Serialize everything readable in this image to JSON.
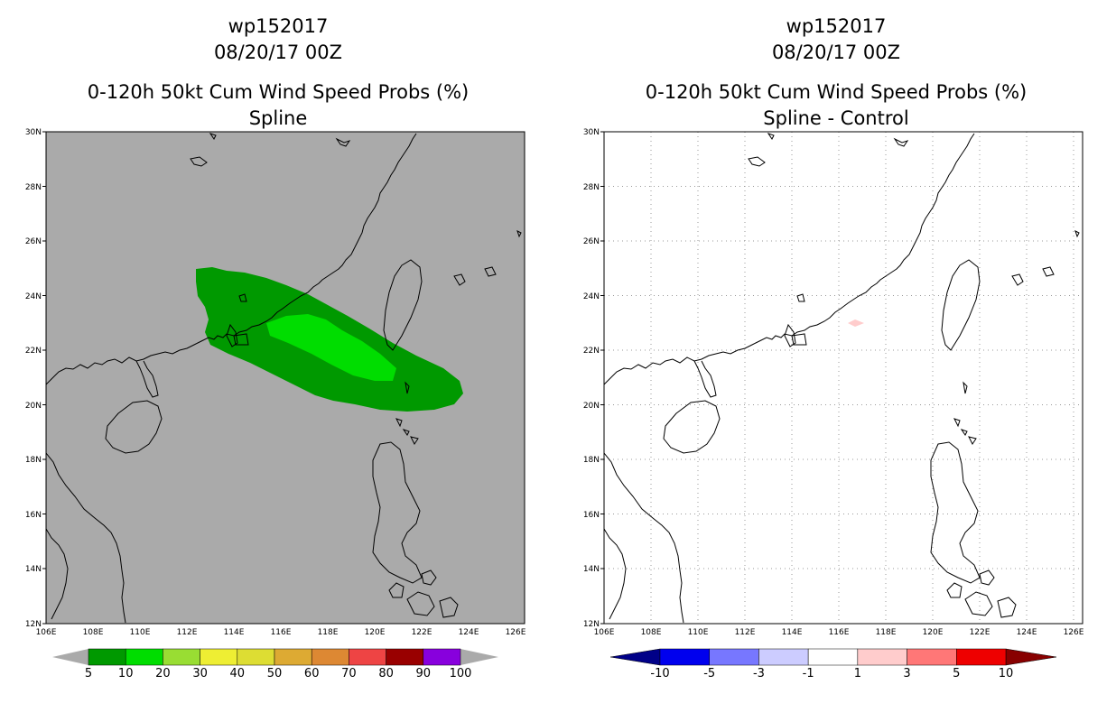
{
  "left_panel": {
    "title_line1": "wp152017",
    "title_line2": "08/20/17 00Z",
    "title_line3": "0-120h 50kt Cum Wind Speed Probs (%)",
    "title_line4": "Spline",
    "background_color": "#aaaaaa"
  },
  "right_panel": {
    "title_line1": "wp152017",
    "title_line2": "08/20/17 00Z",
    "title_line3": "0-120h 50kt Cum Wind Speed Probs (%)",
    "title_line4": "Spline - Control",
    "background_color": "#ffffff"
  },
  "axes": {
    "lat_labels": [
      "30N",
      "28N",
      "26N",
      "24N",
      "22N",
      "20N",
      "18N",
      "16N",
      "14N",
      "12N"
    ],
    "lon_labels": [
      "106E",
      "108E",
      "110E",
      "112E",
      "114E",
      "116E",
      "118E",
      "120E",
      "122E",
      "124E",
      "126E"
    ]
  },
  "left_colorbar": {
    "labels": [
      "5",
      "10",
      "20",
      "30",
      "40",
      "50",
      "60",
      "70",
      "80",
      "90",
      "100"
    ],
    "colors": [
      "#009900",
      "#00dd00",
      "#99dd33",
      "#eeee33",
      "#dddd33",
      "#ddaa33",
      "#dd8833",
      "#ee4444",
      "#990000",
      "#8800dd"
    ],
    "end_color": "#aaaaaa"
  },
  "right_colorbar": {
    "labels": [
      "-10",
      "-5",
      "-3",
      "-1",
      "1",
      "3",
      "5",
      "10"
    ],
    "colors": [
      "#0000ee",
      "#7777ff",
      "#ccccff",
      "#ffffff",
      "#ffcccc",
      "#ff7777",
      "#ee0000"
    ],
    "low_end_color": "#000088",
    "high_end_color": "#880000"
  },
  "legend_series": {
    "left": [
      {
        "level": "5-10",
        "color": "#009900"
      },
      {
        "level": "10-20",
        "color": "#00dd00"
      }
    ],
    "right": [
      {
        "level": "1-3",
        "color": "#ffcccc"
      }
    ]
  }
}
